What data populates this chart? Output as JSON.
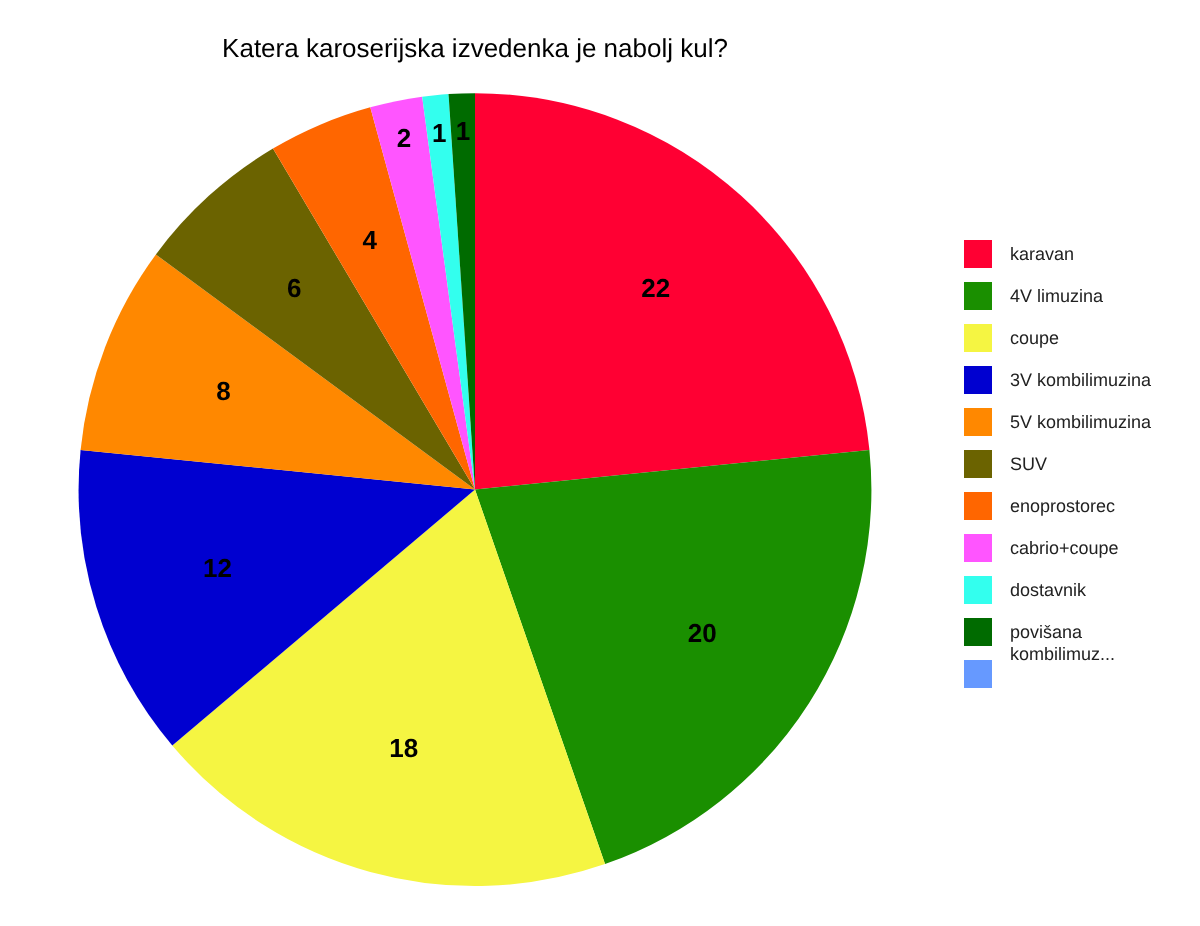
{
  "chart_data": {
    "type": "pie",
    "title": "Katera karoserijska izvedenka je nabolj kul?",
    "categories": [
      "karavan",
      "4V limuzina",
      "coupe",
      "3V kombilimuzina",
      "5V kombilimuzina",
      "SUV",
      "enoprostorec",
      "cabrio+coupe",
      "dostavnik",
      "povišana kombilimuz...",
      null
    ],
    "values": [
      22,
      20,
      18,
      12,
      8,
      6,
      4,
      2,
      1,
      1,
      0
    ],
    "value_labels": [
      "22",
      "20",
      "18",
      "12",
      "8",
      "6",
      "4",
      "2",
      "1",
      "1",
      null
    ],
    "colors": [
      "#ff0033",
      "#1a8f00",
      "#f5f542",
      "#0000d0",
      "#ff8800",
      "#6b6300",
      "#ff6600",
      "#ff55ff",
      "#33ffee",
      "#006b00",
      "#6699ff"
    ],
    "legend": "right"
  }
}
